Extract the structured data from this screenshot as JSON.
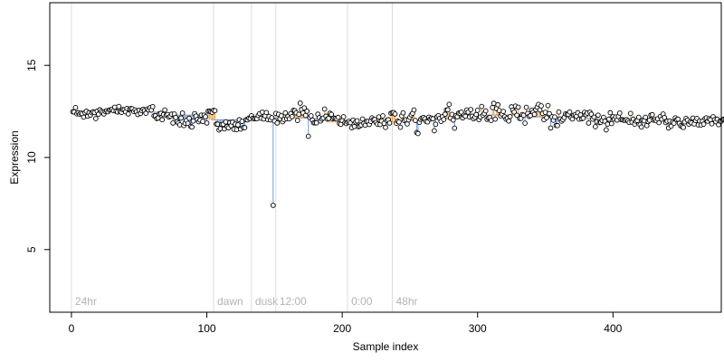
{
  "chart_data": {
    "type": "scatter",
    "title": "",
    "xlabel": "Sample index",
    "ylabel": "Expression",
    "xlim": [
      -16,
      480
    ],
    "ylim": [
      1.6,
      18.4
    ],
    "x_ticks": [
      0,
      100,
      200,
      300,
      400
    ],
    "y_ticks": [
      5,
      10,
      15
    ],
    "grid": false,
    "legend": "none",
    "colors": {
      "points_fill": "#ffffff",
      "points_stroke": "#000000",
      "above_fit": "#f0a040",
      "below_fit": "#6a9ae8",
      "phase_line": "#dcdcdc",
      "phase_label": "#b3b3b3"
    },
    "phase_markers": [
      {
        "x": 0,
        "label": "24hr"
      },
      {
        "x": 105,
        "label": "dawn"
      },
      {
        "x": 133,
        "label": "dusk"
      },
      {
        "x": 151,
        "label": "12:00"
      },
      {
        "x": 204,
        "label": "0:00"
      },
      {
        "x": 237,
        "label": "48hr"
      }
    ],
    "fit_segments": [
      {
        "x0": 1,
        "x1": 60,
        "y": 12.5
      },
      {
        "x0": 68,
        "x1": 98,
        "y": 12.3
      },
      {
        "x0": 103,
        "x1": 128,
        "y": 12.05
      },
      {
        "x0": 133,
        "x1": 150,
        "y": 12.2
      },
      {
        "x0": 150,
        "x1": 178,
        "y": 12.15
      },
      {
        "x0": 198,
        "x1": 236,
        "y": 11.9
      },
      {
        "x0": 240,
        "x1": 262,
        "y": 12.0
      },
      {
        "x0": 262,
        "x1": 290,
        "y": 12.1
      },
      {
        "x0": 290,
        "x1": 340,
        "y": 12.3
      },
      {
        "x0": 340,
        "x1": 380,
        "y": 12.2
      },
      {
        "x0": 380,
        "x1": 420,
        "y": 12.1
      },
      {
        "x0": 420,
        "x1": 460,
        "y": 12.0
      }
    ],
    "outliers": [
      {
        "x": 148,
        "y": 7.4
      },
      {
        "x": 176,
        "y": 11.15
      },
      {
        "x": 256,
        "y": 11.35
      },
      {
        "x": 257,
        "y": 11.3
      }
    ],
    "series": [
      {
        "y": [
          12.48,
          12.47,
          12.71,
          12.37,
          12.43,
          12.35,
          12.41,
          12.37,
          12.19,
          12.43,
          12.51,
          12.24,
          12.43,
          12.3,
          12.43,
          12.48,
          12.44,
          12.11,
          12.51,
          12.35,
          12.59,
          12.5,
          12.44,
          12.36,
          12.5,
          12.54,
          12.48,
          12.57,
          12.59,
          12.62,
          12.54,
          12.73,
          12.51,
          12.47,
          12.77,
          12.48,
          12.45,
          12.6,
          12.59,
          12.48,
          12.66,
          12.36,
          12.63,
          12.66,
          12.64,
          12.5,
          12.58,
          12.49,
          12.33,
          12.57,
          12.39,
          12.54,
          12.62,
          12.55,
          12.4,
          12.63,
          12.58,
          12.7,
          12.57,
          12.76,
          12.26,
          12.26,
          12.11,
          12.14,
          12.37,
          12.4,
          12.05,
          12.33,
          12.58,
          12.29,
          12.33,
          12.19,
          12.24,
          12.35,
          11.87,
          12.36,
          12.17,
          11.95,
          11.87,
          11.77,
          12.14,
          12.41,
          11.73,
          11.86,
          12.01,
          11.85,
          12.13,
          11.69,
          11.65,
          11.98,
          12.38,
          12.25,
          12.06,
          11.94,
          12.03,
          12.3,
          11.96,
          12.3,
          12.21,
          11.87,
          12.51,
          12.51,
          12.48,
          12.45,
          12.56,
          12.54,
          11.81,
          11.81,
          11.49,
          11.57,
          11.79,
          11.8,
          11.55,
          11.93,
          11.67,
          11.61,
          11.89,
          11.73,
          11.91,
          11.53,
          11.81,
          11.51,
          11.77,
          12.05,
          11.54,
          11.96,
          11.62,
          11.62,
          12.05,
          12.04,
          12.13,
          12.11,
          12.27,
          12.13,
          12.1,
          12.11,
          12.1,
          12.28,
          12.38,
          12.13,
          12.46,
          12.09,
          12.26,
          12.44,
          12.06,
          12.23,
          12.04,
          12.16,
          7.4,
          11.98,
          12.39,
          11.87,
          12.34,
          12.1,
          12.26,
          11.94,
          12.06,
          12.42,
          12.1,
          12.23,
          12.1,
          12.38,
          12.22,
          12.56,
          12.54,
          12.42,
          12.01,
          12.34,
          12.95,
          12.6,
          12.42,
          12.69,
          12.28,
          12.51,
          11.15,
          12.17,
          12.26,
          12.03,
          11.88,
          11.88,
          11.88,
          12.35,
          12.16,
          11.98,
          12.08,
          12.14,
          12.63,
          12.24,
          12.09,
          12.12,
          12.4,
          12.34,
          12.1,
          12.14,
          12.12,
          12.09,
          12.18,
          11.84,
          11.8,
          12.0,
          12.21,
          11.89,
          11.84,
          11.92,
          11.96,
          11.89,
          11.61,
          12.03,
          11.68,
          11.93,
          11.99,
          11.67,
          11.7,
          11.76,
          12.09,
          11.85,
          11.75,
          11.96,
          11.96,
          11.79,
          11.96,
          12.15,
          12.05,
          12.06,
          11.9,
          11.81,
          12.2,
          11.79,
          11.98,
          12.26,
          11.85,
          11.63,
          12.01,
          12.05,
          11.87,
          12.4,
          12.43,
          12.44,
          12.36,
          11.86,
          11.97,
          11.93,
          11.64,
          12.26,
          12.42,
          12.0,
          12.05,
          11.82,
          12.04,
          12.18,
          12.31,
          12.4,
          12.58,
          12.01,
          11.35,
          11.3,
          11.91,
          12.07,
          12.14,
          12.17,
          12.1,
          11.96,
          11.93,
          12.19,
          12.08,
          12.14,
          12.1,
          11.45,
          11.8,
          12.21,
          12.27,
          12.12,
          11.96,
          12.21,
          12.06,
          12.35,
          12.58,
          12.59,
          12.88,
          12.14,
          12.34,
          12.03,
          11.59,
          12.27,
          12.21,
          12.41,
          12.39,
          12.46,
          12.15,
          12.29,
          12.24,
          12.58,
          12.46,
          12.2,
          12.6,
          12.24,
          12.1,
          12.18,
          12.33,
          12.56,
          12.05,
          12.2,
          12.77,
          12.29,
          12.38,
          12.53,
          12.07,
          12.14,
          12.17,
          12.01,
          12.71,
          12.94,
          12.08,
          12.65,
          12.86,
          12.55,
          12.26,
          12.36,
          12.5,
          12.21,
          12.08,
          12.13,
          11.98,
          12.22,
          12.75,
          12.57,
          12.47,
          12.79,
          12.29,
          12.73,
          12.12,
          12.12,
          12.33,
          12.29,
          11.86,
          12.72,
          12.39,
          12.23,
          12.27,
          12.57,
          12.46,
          12.34,
          12.6,
          12.73,
          12.88,
          12.58,
          12.8,
          12.39,
          12.05,
          12.45,
          12.16,
          12.82,
          12.38,
          11.6,
          12.21,
          12.02,
          12.2,
          11.74,
          11.73,
          12.47,
          12.09,
          11.97,
          12.05,
          12.17,
          12.37,
          12.33,
          12.34,
          12.47,
          12.16,
          12.09,
          12.29,
          12.31,
          12.23,
          12.43,
          12.08,
          12.31,
          12.1,
          12.13,
          12.45,
          12.32,
          12.41,
          11.87,
          12.46,
          12.35,
          12.08,
          12.19,
          11.67,
          11.94,
          12.3,
          11.89,
          11.91,
          12.01,
          12.18,
          11.97,
          11.5,
          11.81,
          12.08,
          12.43,
          11.84,
          12.21,
          12.09,
          12.2,
          12.03,
          12.22,
          12.41,
          12.06,
          12.05,
          12.02,
          12.02,
          12.06,
          11.99,
          11.9,
          12.39,
          11.92,
          12.08,
          11.81,
          11.97,
          12.01,
          12.18,
          11.77,
          11.65,
          12.02,
          11.99,
          12.18,
          11.73,
          11.95,
          12.02,
          12.3,
          12.32,
          12.03,
          12.06,
          11.99,
          12.1,
          11.89,
          12.22,
          12.08,
          12.36,
          12.17,
          11.89,
          11.97,
          11.6,
          11.98,
          11.7,
          11.92,
          11.86,
          12.15,
          12.05,
          12.08,
          11.85,
          11.72,
          11.67,
          11.63,
          11.93,
          12.12,
          12.03,
          11.81,
          11.93,
          11.88,
          12.14,
          11.82,
          12.0,
          12.12,
          11.77,
          11.98,
          11.76,
          11.96,
          11.81,
          12.11,
          12.15,
          11.97,
          12.1,
          12.05,
          11.83,
          12.21,
          12.05,
          11.94,
          12.08,
          11.78,
          11.97,
          11.97,
          12.05,
          12.08,
          12.1,
          11.88,
          11.93,
          12.04,
          11.92,
          12.02,
          11.92,
          11.69,
          12.1,
          11.98
        ]
      }
    ]
  }
}
